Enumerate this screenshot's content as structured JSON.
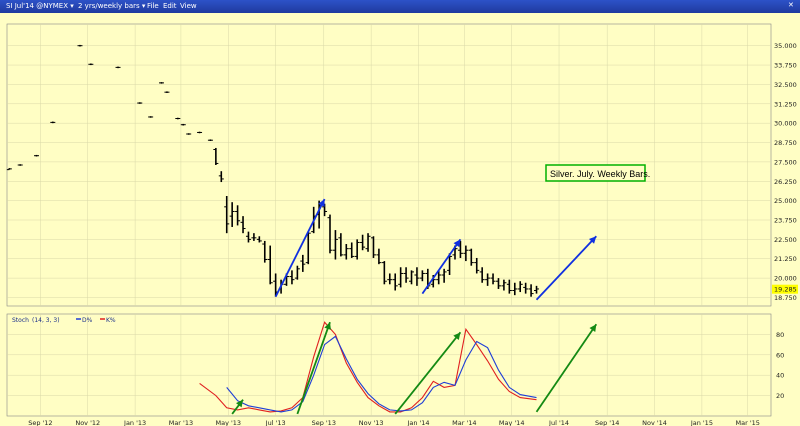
{
  "toolbar": {
    "symbol": "SI Jul'14 @NYMEX",
    "period": "2 yrs/weekly bars",
    "menu": [
      "File",
      "Edit",
      "View"
    ]
  },
  "colors": {
    "background": "#fffec4",
    "price_bars": "#000000",
    "blue_arrows": "#1030e0",
    "green_arrows": "#148a14",
    "d_line": "#1f3ed6",
    "k_line": "#e02020",
    "last_price_tag": "#ffff00",
    "annotation_border": "#00b000"
  },
  "chart_data": [
    {
      "type": "bar",
      "panel": "price",
      "annotation": "Silver. July. Weekly Bars.",
      "last_price": "19.285",
      "y_ticks": [
        "35.000",
        "33.750",
        "32.500",
        "31.250",
        "30.000",
        "28.750",
        "27.500",
        "26.250",
        "25.000",
        "23.750",
        "22.500",
        "21.250",
        "20.000",
        "18.750"
      ],
      "x_ticks": [
        "Sep '12",
        "Nov '12",
        "Jan '13",
        "Mar '13",
        "May '13",
        "Jul '13",
        "Sep '13",
        "Nov '13",
        "Jan '14",
        "Mar '14",
        "May '14",
        "Jul '14",
        "Sep '14",
        "Nov '14",
        "Jan '15",
        "Mar '15"
      ],
      "x_range": [
        "2012-07-20",
        "2015-03-31"
      ],
      "ylim": [
        18.2,
        36.4
      ],
      "bars_ohlc": [
        [
          "2012-07-23",
          27.0,
          27.1,
          27.0,
          27.05
        ],
        [
          "2012-08-06",
          27.3,
          27.35,
          27.25,
          27.3
        ],
        [
          "2012-08-27",
          27.9,
          27.95,
          27.85,
          27.9
        ],
        [
          "2012-09-17",
          30.05,
          30.1,
          30.0,
          30.05
        ],
        [
          "2012-10-22",
          35.0,
          35.05,
          34.95,
          35.0
        ],
        [
          "2012-11-05",
          33.8,
          33.85,
          33.75,
          33.8
        ],
        [
          "2012-12-10",
          33.6,
          33.65,
          33.55,
          33.6
        ],
        [
          "2013-01-07",
          31.3,
          31.35,
          31.25,
          31.3
        ],
        [
          "2013-01-21",
          30.4,
          30.45,
          30.35,
          30.4
        ],
        [
          "2013-02-04",
          32.6,
          32.65,
          32.55,
          32.6
        ],
        [
          "2013-02-11",
          32.0,
          32.05,
          31.95,
          32.0
        ],
        [
          "2013-02-25",
          30.3,
          30.35,
          30.25,
          30.3
        ],
        [
          "2013-03-04",
          29.9,
          29.95,
          29.85,
          29.9
        ],
        [
          "2013-03-11",
          29.3,
          29.35,
          29.25,
          29.3
        ],
        [
          "2013-03-25",
          29.4,
          29.45,
          29.35,
          29.4
        ],
        [
          "2013-04-08",
          28.9,
          28.95,
          28.85,
          28.9
        ],
        [
          "2013-04-15",
          28.3,
          28.4,
          27.3,
          27.4
        ],
        [
          "2013-04-22",
          26.6,
          26.9,
          26.2,
          26.4
        ],
        [
          "2013-04-29",
          24.6,
          25.3,
          22.9,
          23.5
        ],
        [
          "2013-05-06",
          24.0,
          24.9,
          23.3,
          24.3
        ],
        [
          "2013-05-13",
          24.3,
          24.7,
          23.4,
          23.7
        ],
        [
          "2013-05-20",
          23.6,
          24.0,
          22.9,
          23.2
        ],
        [
          "2013-05-27",
          22.7,
          23.0,
          22.3,
          22.5
        ],
        [
          "2013-06-03",
          22.6,
          22.9,
          22.4,
          22.6
        ],
        [
          "2013-06-10",
          22.5,
          22.7,
          22.3,
          22.4
        ],
        [
          "2013-06-17",
          22.2,
          22.4,
          21.0,
          21.2
        ],
        [
          "2013-06-24",
          21.2,
          22.1,
          19.6,
          19.7
        ],
        [
          "2013-07-01",
          19.8,
          20.3,
          18.8,
          19.1
        ],
        [
          "2013-07-08",
          19.3,
          19.9,
          19.0,
          19.6
        ],
        [
          "2013-07-15",
          19.6,
          20.3,
          19.5,
          20.1
        ],
        [
          "2013-07-22",
          20.1,
          20.5,
          19.6,
          19.9
        ],
        [
          "2013-07-29",
          20.0,
          20.8,
          19.9,
          20.6
        ],
        [
          "2013-08-05",
          21.1,
          21.5,
          20.4,
          20.9
        ],
        [
          "2013-08-12",
          21.0,
          23.0,
          20.9,
          22.9
        ],
        [
          "2013-08-19",
          23.0,
          24.6,
          22.9,
          24.0
        ],
        [
          "2013-08-26",
          24.1,
          25.0,
          23.2,
          24.7
        ],
        [
          "2013-09-02",
          24.6,
          24.8,
          24.0,
          24.3
        ],
        [
          "2013-09-09",
          23.9,
          24.1,
          21.6,
          21.8
        ],
        [
          "2013-09-16",
          21.8,
          23.1,
          21.2,
          22.5
        ],
        [
          "2013-09-23",
          22.6,
          22.9,
          21.4,
          21.5
        ],
        [
          "2013-09-30",
          21.5,
          22.2,
          21.2,
          21.9
        ],
        [
          "2013-10-07",
          21.9,
          22.3,
          21.3,
          21.4
        ],
        [
          "2013-10-14",
          21.4,
          22.5,
          21.2,
          22.3
        ],
        [
          "2013-10-21",
          22.3,
          22.8,
          21.8,
          22.0
        ],
        [
          "2013-10-28",
          21.9,
          22.9,
          21.7,
          22.7
        ],
        [
          "2013-11-04",
          22.6,
          22.7,
          21.3,
          21.5
        ],
        [
          "2013-11-11",
          21.5,
          21.9,
          20.9,
          21.0
        ],
        [
          "2013-11-18",
          21.0,
          21.1,
          19.6,
          19.8
        ],
        [
          "2013-11-25",
          19.9,
          20.3,
          19.6,
          19.9
        ],
        [
          "2013-12-02",
          19.9,
          20.3,
          19.2,
          19.5
        ],
        [
          "2013-12-09",
          19.6,
          20.7,
          19.4,
          20.3
        ],
        [
          "2013-12-16",
          20.3,
          20.7,
          19.7,
          20.0
        ],
        [
          "2013-12-23",
          19.8,
          20.5,
          19.6,
          20.4
        ],
        [
          "2013-12-30",
          20.2,
          20.7,
          19.5,
          20.0
        ],
        [
          "2014-01-06",
          20.0,
          20.5,
          19.8,
          20.3
        ],
        [
          "2014-01-13",
          20.3,
          20.6,
          19.3,
          19.5
        ],
        [
          "2014-01-20",
          19.6,
          20.2,
          19.4,
          19.9
        ],
        [
          "2014-01-27",
          19.9,
          20.5,
          19.6,
          20.2
        ],
        [
          "2014-02-03",
          20.2,
          20.6,
          19.7,
          20.4
        ],
        [
          "2014-02-10",
          20.5,
          21.6,
          20.2,
          21.4
        ],
        [
          "2014-02-17",
          21.5,
          22.1,
          21.2,
          21.9
        ],
        [
          "2014-02-24",
          21.8,
          22.4,
          21.3,
          21.6
        ],
        [
          "2014-03-03",
          21.6,
          22.1,
          21.1,
          21.8
        ],
        [
          "2014-03-10",
          21.8,
          21.9,
          20.8,
          21.0
        ],
        [
          "2014-03-17",
          21.0,
          21.3,
          20.3,
          20.5
        ],
        [
          "2014-03-24",
          20.4,
          20.7,
          19.7,
          19.9
        ],
        [
          "2014-03-31",
          19.9,
          20.3,
          19.5,
          20.0
        ],
        [
          "2014-04-07",
          20.0,
          20.3,
          19.6,
          19.8
        ],
        [
          "2014-04-14",
          19.8,
          20.0,
          19.3,
          19.5
        ],
        [
          "2014-04-21",
          19.5,
          19.9,
          19.2,
          19.7
        ],
        [
          "2014-04-28",
          19.6,
          19.9,
          19.0,
          19.2
        ],
        [
          "2014-05-05",
          19.2,
          19.7,
          18.9,
          19.3
        ],
        [
          "2014-05-12",
          19.3,
          19.8,
          19.1,
          19.6
        ],
        [
          "2014-05-19",
          19.4,
          19.7,
          19.0,
          19.3
        ],
        [
          "2014-05-26",
          19.3,
          19.6,
          18.8,
          19.0
        ],
        [
          "2014-06-02",
          19.2,
          19.5,
          19.0,
          19.3
        ]
      ],
      "arrows": [
        {
          "color": "blue",
          "from": [
            "2013-07-01",
            18.8
          ],
          "to": [
            "2013-09-02",
            25.1
          ]
        },
        {
          "color": "blue",
          "from": [
            "2014-01-06",
            19.0
          ],
          "to": [
            "2014-02-24",
            22.5
          ]
        },
        {
          "color": "blue",
          "from": [
            "2014-06-02",
            18.6
          ],
          "to": [
            "2014-08-18",
            22.7
          ]
        }
      ]
    },
    {
      "type": "line",
      "panel": "stochastic",
      "title": "Stoch",
      "params": "(14, 3, 3)",
      "legend": [
        "D%",
        "K%"
      ],
      "y_ticks": [
        "80",
        "60",
        "40",
        "20"
      ],
      "ylim": [
        0,
        100
      ],
      "series": [
        {
          "name": "D%",
          "color": "#1f3ed6",
          "x": [
            "2013-04-29",
            "2013-05-13",
            "2013-05-27",
            "2013-06-10",
            "2013-06-24",
            "2013-07-08",
            "2013-07-22",
            "2013-08-05",
            "2013-08-19",
            "2013-09-02",
            "2013-09-16",
            "2013-09-30",
            "2013-10-14",
            "2013-10-28",
            "2013-11-11",
            "2013-11-25",
            "2013-12-09",
            "2013-12-23",
            "2014-01-06",
            "2014-01-20",
            "2014-02-03",
            "2014-02-17",
            "2014-03-03",
            "2014-03-17",
            "2014-03-31",
            "2014-04-14",
            "2014-04-28",
            "2014-05-12",
            "2014-06-02"
          ],
          "values": [
            28,
            15,
            10,
            8,
            6,
            4,
            6,
            14,
            40,
            70,
            78,
            56,
            36,
            22,
            12,
            6,
            5,
            6,
            13,
            28,
            33,
            30,
            55,
            73,
            67,
            45,
            28,
            21,
            18
          ]
        },
        {
          "name": "K%",
          "color": "#e02020",
          "x": [
            "2013-03-25",
            "2013-04-15",
            "2013-04-29",
            "2013-05-13",
            "2013-05-27",
            "2013-06-10",
            "2013-06-24",
            "2013-07-08",
            "2013-07-22",
            "2013-08-05",
            "2013-08-19",
            "2013-09-02",
            "2013-09-16",
            "2013-09-30",
            "2013-10-14",
            "2013-10-28",
            "2013-11-11",
            "2013-11-25",
            "2013-12-09",
            "2013-12-23",
            "2014-01-06",
            "2014-01-20",
            "2014-02-03",
            "2014-02-17",
            "2014-03-03",
            "2014-03-17",
            "2014-03-31",
            "2014-04-14",
            "2014-04-28",
            "2014-05-12",
            "2014-06-02"
          ],
          "values": [
            32,
            20,
            8,
            6,
            8,
            6,
            4,
            5,
            8,
            18,
            58,
            92,
            80,
            52,
            33,
            18,
            10,
            4,
            4,
            8,
            18,
            34,
            28,
            30,
            85,
            70,
            54,
            36,
            24,
            18,
            16
          ]
        }
      ],
      "arrows": [
        {
          "color": "green",
          "from": [
            "2013-05-06",
            2
          ],
          "to": [
            "2013-05-20",
            16
          ]
        },
        {
          "color": "green",
          "from": [
            "2013-07-29",
            2
          ],
          "to": [
            "2013-09-09",
            92
          ]
        },
        {
          "color": "green",
          "from": [
            "2013-12-02",
            2
          ],
          "to": [
            "2014-02-24",
            82
          ]
        },
        {
          "color": "green",
          "from": [
            "2014-06-02",
            4
          ],
          "to": [
            "2014-08-18",
            90
          ]
        }
      ]
    }
  ]
}
